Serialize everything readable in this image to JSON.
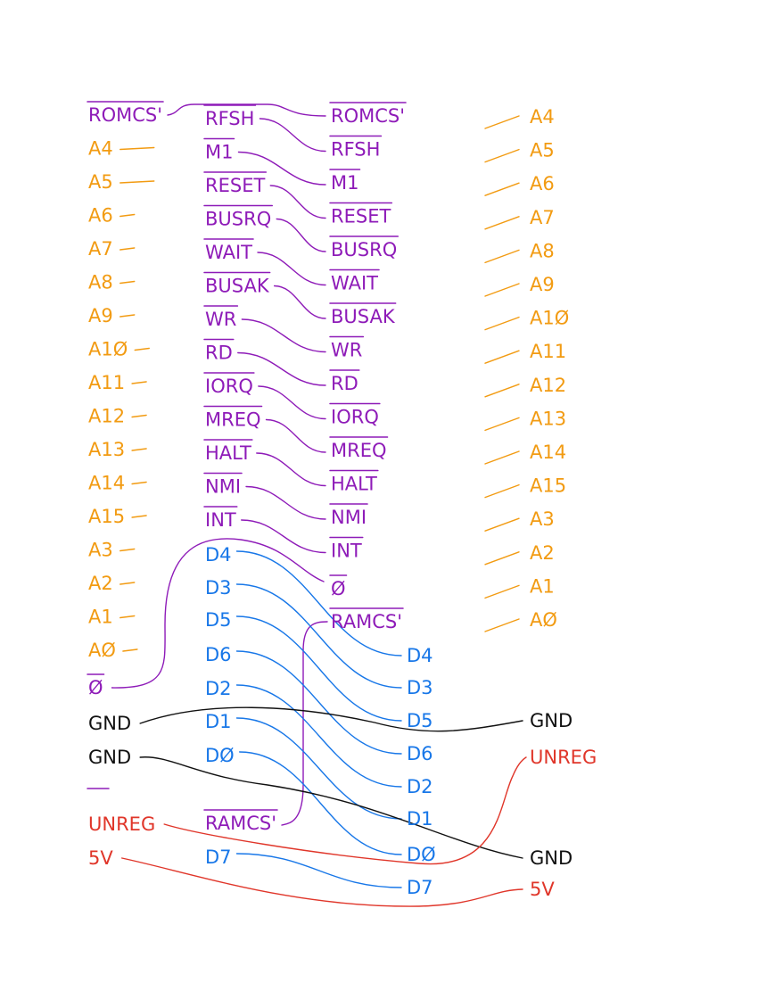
{
  "colors": {
    "control": "#8E1BB8",
    "address": "#F29B12",
    "data": "#1877E8",
    "ground": "#111111",
    "power": "#E0362A"
  },
  "columns": {
    "left": [
      {
        "label": "ROMCS'",
        "group": "control",
        "overline": true
      },
      {
        "label": "A4",
        "group": "address"
      },
      {
        "label": "A5",
        "group": "address"
      },
      {
        "label": "A6",
        "group": "address"
      },
      {
        "label": "A7",
        "group": "address"
      },
      {
        "label": "A8",
        "group": "address"
      },
      {
        "label": "A9",
        "group": "address"
      },
      {
        "label": "A1Ø",
        "group": "address"
      },
      {
        "label": "A11",
        "group": "address"
      },
      {
        "label": "A12",
        "group": "address"
      },
      {
        "label": "A13",
        "group": "address"
      },
      {
        "label": "A14",
        "group": "address"
      },
      {
        "label": "A15",
        "group": "address"
      },
      {
        "label": "A3",
        "group": "address"
      },
      {
        "label": "A2",
        "group": "address"
      },
      {
        "label": "A1",
        "group": "address"
      },
      {
        "label": "AØ",
        "group": "address"
      },
      {
        "label": "Ø",
        "group": "control",
        "overline": true
      },
      {
        "label": "GND",
        "group": "ground"
      },
      {
        "label": "GND",
        "group": "ground"
      },
      {
        "label": "",
        "group": "control",
        "overline": true
      },
      {
        "label": "UNREG",
        "group": "power"
      },
      {
        "label": "5V",
        "group": "power"
      }
    ],
    "mid_left": [
      {
        "label": "RFSH",
        "group": "control",
        "overline": true
      },
      {
        "label": "M1",
        "group": "control",
        "overline": true
      },
      {
        "label": "RESET",
        "group": "control",
        "overline": true
      },
      {
        "label": "BUSRQ",
        "group": "control",
        "overline": true
      },
      {
        "label": "WAIT",
        "group": "control",
        "overline": true
      },
      {
        "label": "BUSAK",
        "group": "control",
        "overline": true
      },
      {
        "label": "WR",
        "group": "control",
        "overline": true
      },
      {
        "label": "RD",
        "group": "control",
        "overline": true
      },
      {
        "label": "IORQ",
        "group": "control",
        "overline": true
      },
      {
        "label": "MREQ",
        "group": "control",
        "overline": true
      },
      {
        "label": "HALT",
        "group": "control",
        "overline": true
      },
      {
        "label": "NMI",
        "group": "control",
        "overline": true
      },
      {
        "label": "INT",
        "group": "control",
        "overline": true
      },
      {
        "label": "D4",
        "group": "data"
      },
      {
        "label": "D3",
        "group": "data"
      },
      {
        "label": "D5",
        "group": "data"
      },
      {
        "label": "D6",
        "group": "data"
      },
      {
        "label": "D2",
        "group": "data"
      },
      {
        "label": "D1",
        "group": "data"
      },
      {
        "label": "DØ",
        "group": "data"
      },
      {
        "label": "",
        "group": "none"
      },
      {
        "label": "RAMCS'",
        "group": "control",
        "overline": true
      },
      {
        "label": "D7",
        "group": "data"
      }
    ],
    "mid_right": [
      {
        "label": "ROMCS'",
        "group": "control",
        "overline": true
      },
      {
        "label": "RFSH",
        "group": "control",
        "overline": true
      },
      {
        "label": "M1",
        "group": "control",
        "overline": true
      },
      {
        "label": "RESET",
        "group": "control",
        "overline": true
      },
      {
        "label": "BUSRQ",
        "group": "control",
        "overline": true
      },
      {
        "label": "WAIT",
        "group": "control",
        "overline": true
      },
      {
        "label": "BUSAK",
        "group": "control",
        "overline": true
      },
      {
        "label": "WR",
        "group": "control",
        "overline": true
      },
      {
        "label": "RD",
        "group": "control",
        "overline": true
      },
      {
        "label": "IORQ",
        "group": "control",
        "overline": true
      },
      {
        "label": "MREQ",
        "group": "control",
        "overline": true
      },
      {
        "label": "HALT",
        "group": "control",
        "overline": true
      },
      {
        "label": "NMI",
        "group": "control",
        "overline": true
      },
      {
        "label": "INT",
        "group": "control",
        "overline": true
      },
      {
        "label": "Ø",
        "group": "control",
        "overline": true
      },
      {
        "label": "RAMCS'",
        "group": "control",
        "overline": true
      }
    ],
    "data_right": [
      {
        "label": "D4",
        "group": "data"
      },
      {
        "label": "D3",
        "group": "data"
      },
      {
        "label": "D5",
        "group": "data"
      },
      {
        "label": "D6",
        "group": "data"
      },
      {
        "label": "D2",
        "group": "data"
      },
      {
        "label": "D1",
        "group": "data"
      },
      {
        "label": "DØ",
        "group": "data"
      },
      {
        "label": "D7",
        "group": "data"
      }
    ],
    "right": [
      {
        "label": "A4",
        "group": "address"
      },
      {
        "label": "A5",
        "group": "address"
      },
      {
        "label": "A6",
        "group": "address"
      },
      {
        "label": "A7",
        "group": "address"
      },
      {
        "label": "A8",
        "group": "address"
      },
      {
        "label": "A9",
        "group": "address"
      },
      {
        "label": "A1Ø",
        "group": "address"
      },
      {
        "label": "A11",
        "group": "address"
      },
      {
        "label": "A12",
        "group": "address"
      },
      {
        "label": "A13",
        "group": "address"
      },
      {
        "label": "A14",
        "group": "address"
      },
      {
        "label": "A15",
        "group": "address"
      },
      {
        "label": "A3",
        "group": "address"
      },
      {
        "label": "A2",
        "group": "address"
      },
      {
        "label": "A1",
        "group": "address"
      },
      {
        "label": "AØ",
        "group": "address"
      }
    ],
    "power_right": [
      {
        "label": "GND",
        "group": "ground"
      },
      {
        "label": "UNREG",
        "group": "power"
      },
      {
        "label": "GND",
        "group": "ground"
      },
      {
        "label": "5V",
        "group": "power"
      }
    ]
  }
}
